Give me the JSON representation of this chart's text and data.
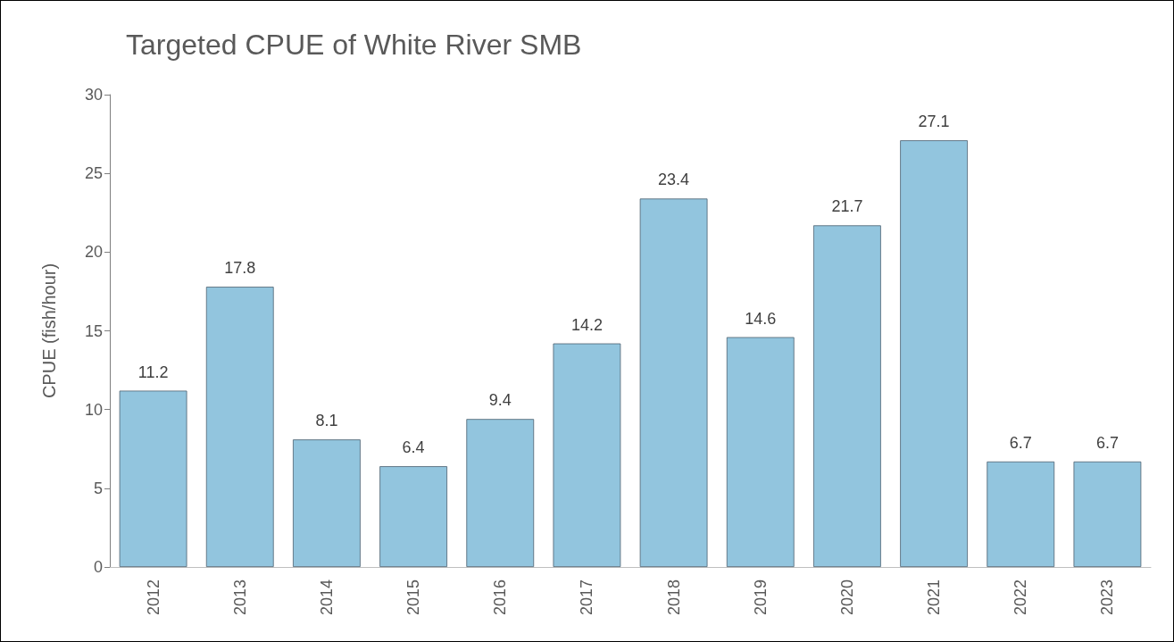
{
  "chart_data": {
    "type": "bar",
    "title": "Targeted CPUE of White River SMB",
    "ylabel": "CPUE (fish/hour)",
    "categories": [
      "2012",
      "2013",
      "2014",
      "2015",
      "2016",
      "2017",
      "2018",
      "2019",
      "2020",
      "2021",
      "2022",
      "2023"
    ],
    "values": [
      11.2,
      17.8,
      8.1,
      6.4,
      9.4,
      14.2,
      23.4,
      14.6,
      21.7,
      27.1,
      6.7,
      6.7
    ],
    "color": "#92c5de",
    "ylim": [
      0,
      30
    ],
    "yticks": [
      0,
      5,
      10,
      15,
      20,
      25,
      30
    ],
    "grid": false,
    "data_labels": true
  }
}
